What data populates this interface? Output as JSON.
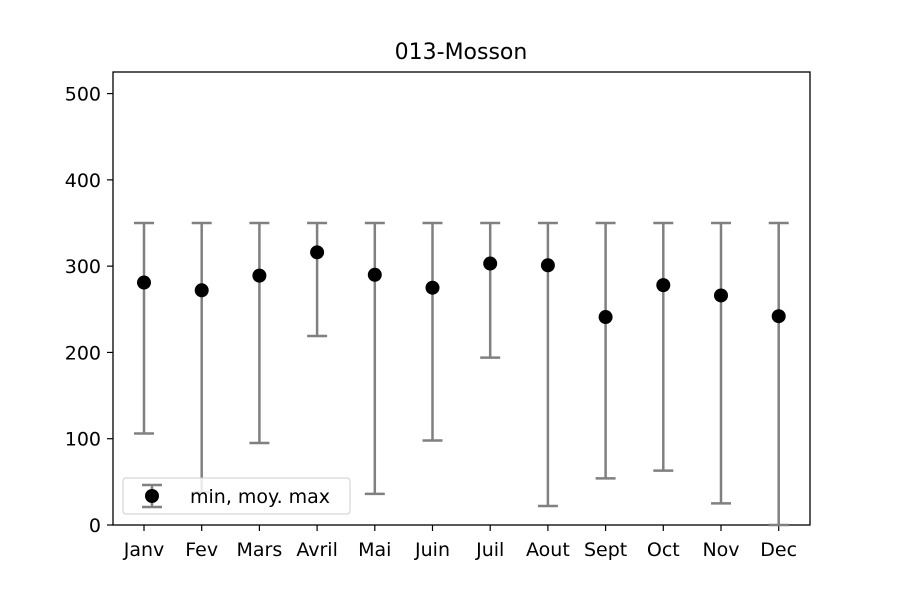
{
  "chart_data": {
    "type": "errorbar",
    "title": "013-Mosson",
    "xlabel": "",
    "ylabel": "",
    "categories": [
      "Janv",
      "Fev",
      "Mars",
      "Avril",
      "Mai",
      "Juin",
      "Juil",
      "Aout",
      "Sept",
      "Oct",
      "Nov",
      "Dec"
    ],
    "series": [
      {
        "name": "min, moy. max",
        "mean": [
          281,
          272,
          289,
          316,
          290,
          275,
          303,
          301,
          241,
          278,
          266,
          242
        ],
        "min": [
          106,
          38,
          95,
          219,
          36,
          98,
          194,
          22,
          54,
          63,
          25,
          0
        ],
        "max": [
          350,
          350,
          350,
          350,
          350,
          350,
          350,
          350,
          350,
          350,
          350,
          350
        ]
      }
    ],
    "ylim": [
      0,
      525
    ],
    "yticks": [
      0,
      100,
      200,
      300,
      400,
      500
    ],
    "grid": false,
    "legend_position": "lower-left",
    "colors": {
      "marker": "#000000",
      "errorbar": "#808080"
    }
  }
}
